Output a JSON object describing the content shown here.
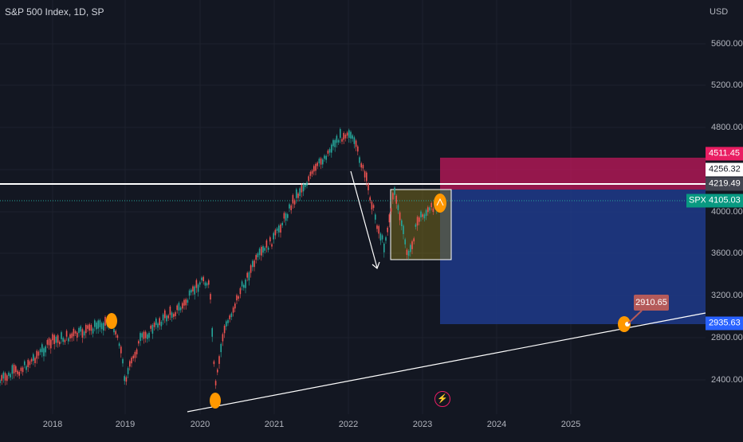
{
  "header": {
    "title": "S&P 500 Index, 1D, SP",
    "currency": "USD"
  },
  "y_axis": {
    "ticks": [
      "5600.00",
      "5200.00",
      "4800.00",
      "4000.00",
      "3600.00",
      "3200.00",
      "2800.00",
      "2400.00"
    ]
  },
  "x_axis": {
    "ticks": [
      "2018",
      "2019",
      "2020",
      "2021",
      "2022",
      "2023",
      "2024",
      "2025"
    ]
  },
  "price_tags": {
    "stop": "4511.45",
    "level_a": "4256.32",
    "level_b": "4219.49",
    "current": "4105.03",
    "symbol": "SPX",
    "target": "2935.63"
  },
  "callout": {
    "value": "2910.65"
  },
  "colors": {
    "background": "#131722",
    "stop_zone": "#c2185b",
    "target_zone": "#1e3a8a",
    "marker": "#ff9800",
    "up": "#26a69a",
    "down": "#ef5350"
  },
  "icons": {
    "alert": "lightning-icon"
  }
}
